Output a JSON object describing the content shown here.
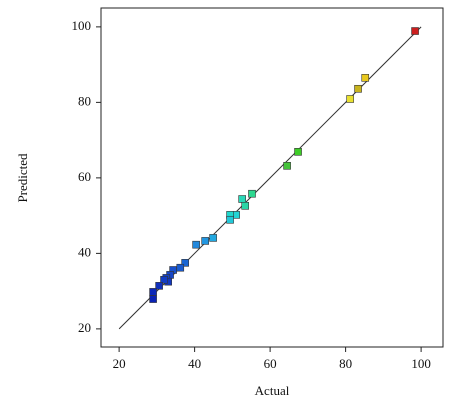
{
  "chart_data": {
    "type": "scatter",
    "x_label": "Actual",
    "y_label": "Predicted",
    "xlim": [
      15.2,
      105.8
    ],
    "ylim": [
      15.2,
      105
    ],
    "xticks": [
      20,
      40,
      60,
      80,
      100
    ],
    "yticks": [
      20,
      40,
      60,
      80,
      100
    ],
    "x": [
      98.4,
      85.2,
      83.3,
      81.2,
      67.4,
      64.5,
      55.2,
      52.6,
      53.4,
      51.0,
      49.4,
      49.4,
      44.9,
      42.8,
      40.4,
      37.5,
      36.2,
      34.3,
      33.5,
      32.5,
      33.0,
      31.9,
      30.6,
      29.0,
      29.0
    ],
    "values": [
      98.9,
      86.5,
      83.6,
      80.9,
      66.9,
      63.2,
      55.8,
      54.4,
      52.6,
      50.2,
      50.2,
      48.9,
      44.1,
      43.3,
      42.3,
      37.5,
      36.2,
      35.6,
      34.3,
      33.5,
      32.5,
      33.0,
      31.4,
      29.8,
      27.9
    ],
    "colors": [
      "#cc1f1f",
      "#e8c81e",
      "#c8b41e",
      "#e8e030",
      "#3ecc28",
      "#44c23a",
      "#2ed890",
      "#2ad8b8",
      "#2ad6a6",
      "#22d4d4",
      "#1ed8cc",
      "#22c8d8",
      "#22a8e0",
      "#2296e0",
      "#2288dc",
      "#1a66d4",
      "#1a5cd0",
      "#1850cc",
      "#1646c8",
      "#1440c4",
      "#1238c0",
      "#123cc2",
      "#1030bc",
      "#0c28b8",
      "#0a22b4"
    ],
    "fit_line": {
      "x": [
        20,
        100
      ],
      "values": [
        20,
        100
      ],
      "color": "#333333"
    }
  }
}
